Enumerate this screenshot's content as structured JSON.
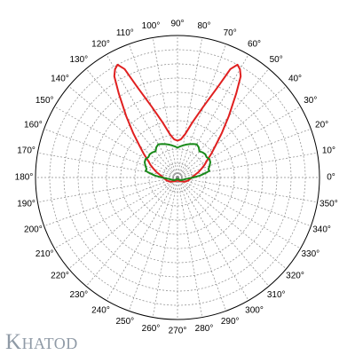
{
  "chart_data": {
    "type": "polar-line",
    "angle_labels": [
      "0°",
      "10°",
      "20°",
      "30°",
      "40°",
      "50°",
      "60°",
      "70°",
      "80°",
      "90°",
      "100°",
      "110°",
      "120°",
      "130°",
      "140°",
      "150°",
      "160°",
      "170°",
      "180°",
      "190°",
      "200°",
      "210°",
      "220°",
      "230°",
      "240°",
      "250°",
      "260°",
      "270°",
      "280°",
      "290°",
      "300°",
      "310°",
      "320°",
      "330°",
      "340°",
      "350°"
    ],
    "angle_values": [
      0,
      10,
      20,
      30,
      40,
      50,
      60,
      70,
      80,
      90,
      100,
      110,
      120,
      130,
      140,
      150,
      160,
      170,
      180,
      190,
      200,
      210,
      220,
      230,
      240,
      250,
      260,
      270,
      280,
      290,
      300,
      310,
      320,
      330,
      340,
      350
    ],
    "r_max": 10,
    "grid": true,
    "series": [
      {
        "color": "#e02020",
        "points": [
          [
            270,
            0.2
          ],
          [
            300,
            0.3
          ],
          [
            330,
            0.6
          ],
          [
            345,
            0.8
          ],
          [
            0,
            1.0
          ],
          [
            10,
            1.3
          ],
          [
            15,
            1.55
          ],
          [
            20,
            1.8
          ],
          [
            25,
            2.1
          ],
          [
            30,
            2.4
          ],
          [
            35,
            2.9
          ],
          [
            40,
            3.5
          ],
          [
            45,
            4.4
          ],
          [
            50,
            5.6
          ],
          [
            55,
            7.2
          ],
          [
            58,
            8.4
          ],
          [
            60,
            8.8
          ],
          [
            62,
            9.0
          ],
          [
            64,
            8.5
          ],
          [
            66,
            7.0
          ],
          [
            70,
            5.3
          ],
          [
            75,
            4.0
          ],
          [
            80,
            3.1
          ],
          [
            85,
            2.7
          ],
          [
            90,
            2.6
          ],
          [
            95,
            2.7
          ],
          [
            100,
            3.1
          ],
          [
            105,
            4.0
          ],
          [
            110,
            5.3
          ],
          [
            114,
            7.0
          ],
          [
            116,
            8.5
          ],
          [
            118,
            9.0
          ],
          [
            120,
            8.8
          ],
          [
            122,
            8.4
          ],
          [
            125,
            7.2
          ],
          [
            130,
            5.6
          ],
          [
            135,
            4.4
          ],
          [
            140,
            3.5
          ],
          [
            145,
            2.9
          ],
          [
            150,
            2.4
          ],
          [
            155,
            2.1
          ],
          [
            160,
            1.8
          ],
          [
            165,
            1.55
          ],
          [
            170,
            1.3
          ],
          [
            180,
            1.0
          ],
          [
            195,
            0.8
          ],
          [
            210,
            0.6
          ],
          [
            240,
            0.3
          ],
          [
            270,
            0.2
          ]
        ]
      },
      {
        "color": "#1a8a1a",
        "points": [
          [
            270,
            0.1
          ],
          [
            320,
            0.3
          ],
          [
            350,
            0.6
          ],
          [
            0,
            1.1
          ],
          [
            5,
            1.6
          ],
          [
            10,
            2.1
          ],
          [
            12,
            2.3
          ],
          [
            15,
            2.25
          ],
          [
            20,
            2.4
          ],
          [
            25,
            2.55
          ],
          [
            30,
            2.6
          ],
          [
            35,
            2.5
          ],
          [
            40,
            2.55
          ],
          [
            45,
            2.5
          ],
          [
            50,
            2.4
          ],
          [
            55,
            2.6
          ],
          [
            60,
            2.7
          ],
          [
            65,
            2.6
          ],
          [
            70,
            2.5
          ],
          [
            75,
            2.4
          ],
          [
            80,
            2.3
          ],
          [
            85,
            2.2
          ],
          [
            90,
            2.1
          ],
          [
            95,
            2.2
          ],
          [
            100,
            2.3
          ],
          [
            105,
            2.4
          ],
          [
            110,
            2.5
          ],
          [
            115,
            2.6
          ],
          [
            120,
            2.7
          ],
          [
            125,
            2.6
          ],
          [
            130,
            2.4
          ],
          [
            135,
            2.5
          ],
          [
            140,
            2.55
          ],
          [
            145,
            2.5
          ],
          [
            150,
            2.6
          ],
          [
            155,
            2.55
          ],
          [
            160,
            2.4
          ],
          [
            165,
            2.25
          ],
          [
            168,
            2.3
          ],
          [
            170,
            2.1
          ],
          [
            175,
            1.6
          ],
          [
            180,
            1.1
          ],
          [
            190,
            0.6
          ],
          [
            220,
            0.3
          ],
          [
            270,
            0.1
          ]
        ]
      }
    ]
  },
  "brand": {
    "big": "K",
    "rest": "HATOD"
  }
}
